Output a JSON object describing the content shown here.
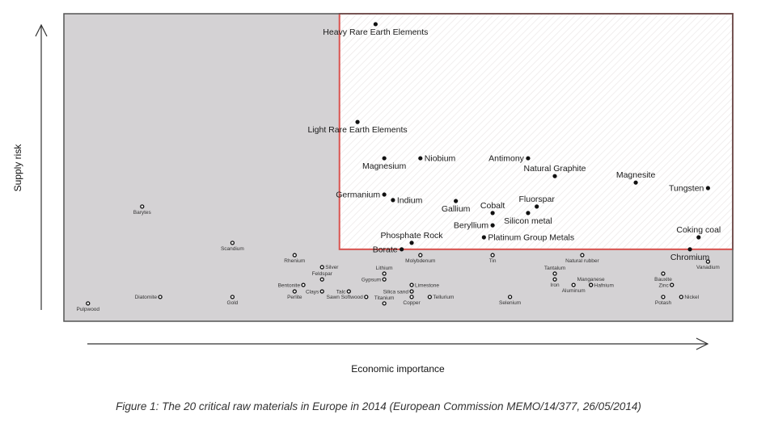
{
  "chart_data": {
    "type": "scatter",
    "title": "",
    "xlabel": "Economic importance",
    "ylabel": "Supply risk",
    "xlim": [
      0,
      100
    ],
    "ylim": [
      0,
      100
    ],
    "grid": false,
    "legend": "none",
    "colors": {
      "plot_background": "#d4d2d4",
      "critical_region": "#ffffff",
      "critical_border": "#d9534f",
      "frame": "#555555",
      "marker": "#111111"
    },
    "critical_region": {
      "x_min": 41.2,
      "y_min": 23.4
    },
    "series": [
      {
        "name": "Critical raw materials",
        "marker": "filled",
        "points": [
          {
            "label": "Heavy Rare Earth Elements",
            "x": 46.6,
            "y": 96.6,
            "pos": "below"
          },
          {
            "label": "Light Rare Earth Elements",
            "x": 43.9,
            "y": 64.8,
            "pos": "below"
          },
          {
            "label": "Magnesium",
            "x": 47.9,
            "y": 53.0,
            "pos": "below"
          },
          {
            "label": "Niobium",
            "x": 53.3,
            "y": 53.0,
            "pos": "right"
          },
          {
            "label": "Antimony",
            "x": 69.4,
            "y": 53.0,
            "pos": "left"
          },
          {
            "label": "Natural Graphite",
            "x": 73.4,
            "y": 47.2,
            "pos": "above"
          },
          {
            "label": "Magnesite",
            "x": 85.5,
            "y": 45.1,
            "pos": "above"
          },
          {
            "label": "Tungsten",
            "x": 96.3,
            "y": 43.3,
            "pos": "left"
          },
          {
            "label": "Germanium",
            "x": 47.9,
            "y": 41.2,
            "pos": "left"
          },
          {
            "label": "Indium",
            "x": 49.2,
            "y": 39.4,
            "pos": "right"
          },
          {
            "label": "Gallium",
            "x": 58.6,
            "y": 39.1,
            "pos": "below"
          },
          {
            "label": "Fluorspar",
            "x": 70.7,
            "y": 37.3,
            "pos": "above"
          },
          {
            "label": "Cobalt",
            "x": 64.1,
            "y": 35.2,
            "pos": "above"
          },
          {
            "label": "Silicon metal",
            "x": 69.4,
            "y": 35.2,
            "pos": "below"
          },
          {
            "label": "Beryllium",
            "x": 64.1,
            "y": 31.2,
            "pos": "left"
          },
          {
            "label": "Coking coal",
            "x": 94.9,
            "y": 27.3,
            "pos": "above"
          },
          {
            "label": "Platinum Group Metals",
            "x": 62.8,
            "y": 27.3,
            "pos": "right"
          },
          {
            "label": "Phosphate Rock",
            "x": 52.0,
            "y": 25.5,
            "pos": "above"
          },
          {
            "label": "Borate",
            "x": 50.5,
            "y": 23.4,
            "pos": "left"
          },
          {
            "label": "Chromium",
            "x": 93.6,
            "y": 23.4,
            "pos": "below"
          }
        ]
      },
      {
        "name": "Non-critical raw materials",
        "marker": "open",
        "points": [
          {
            "label": "Barytes",
            "x": 11.7,
            "y": 37.3,
            "pos": "below"
          },
          {
            "label": "Scandium",
            "x": 25.2,
            "y": 25.5,
            "pos": "below"
          },
          {
            "label": "Rhenium",
            "x": 34.5,
            "y": 21.5,
            "pos": "below"
          },
          {
            "label": "Silver",
            "x": 38.6,
            "y": 17.6,
            "pos": "right"
          },
          {
            "label": "Lithium",
            "x": 47.9,
            "y": 15.5,
            "pos": "above"
          },
          {
            "label": "Molybdenum",
            "x": 53.3,
            "y": 21.5,
            "pos": "below"
          },
          {
            "label": "Tin",
            "x": 64.1,
            "y": 21.5,
            "pos": "below"
          },
          {
            "label": "Natural rubber",
            "x": 77.5,
            "y": 21.5,
            "pos": "below"
          },
          {
            "label": "Vanadium",
            "x": 96.3,
            "y": 19.4,
            "pos": "below"
          },
          {
            "label": "Tantalum",
            "x": 73.4,
            "y": 15.5,
            "pos": "above"
          },
          {
            "label": "Bauxite",
            "x": 89.6,
            "y": 15.5,
            "pos": "below"
          },
          {
            "label": "Gypsum",
            "x": 47.9,
            "y": 13.6,
            "pos": "left"
          },
          {
            "label": "Feldspar",
            "x": 38.6,
            "y": 13.6,
            "pos": "above"
          },
          {
            "label": "Iron",
            "x": 73.4,
            "y": 13.6,
            "pos": "below"
          },
          {
            "label": "Bentonite",
            "x": 35.8,
            "y": 11.8,
            "pos": "left"
          },
          {
            "label": "Clays",
            "x": 38.6,
            "y": 9.7,
            "pos": "left"
          },
          {
            "label": "Limestone",
            "x": 52.0,
            "y": 11.8,
            "pos": "right"
          },
          {
            "label": "Aluminum",
            "x": 76.2,
            "y": 11.8,
            "pos": "below"
          },
          {
            "label": "Manganese",
            "x": 78.8,
            "y": 11.8,
            "pos": "above"
          },
          {
            "label": "Hafnium",
            "x": 78.8,
            "y": 11.8,
            "pos": "right"
          },
          {
            "label": "Zinc",
            "x": 90.9,
            "y": 11.8,
            "pos": "left"
          },
          {
            "label": "Perlite",
            "x": 34.5,
            "y": 9.7,
            "pos": "below"
          },
          {
            "label": "Talc",
            "x": 42.6,
            "y": 9.7,
            "pos": "left"
          },
          {
            "label": "Silica sand",
            "x": 52.0,
            "y": 9.7,
            "pos": "left"
          },
          {
            "label": "Diatomite",
            "x": 14.4,
            "y": 7.9,
            "pos": "left"
          },
          {
            "label": "Gold",
            "x": 25.2,
            "y": 7.9,
            "pos": "below"
          },
          {
            "label": "Sawn Softwood",
            "x": 45.2,
            "y": 7.9,
            "pos": "left"
          },
          {
            "label": "Titanium",
            "x": 47.9,
            "y": 5.8,
            "pos": "above"
          },
          {
            "label": "Copper",
            "x": 52.0,
            "y": 7.9,
            "pos": "below"
          },
          {
            "label": "Tellurium",
            "x": 54.7,
            "y": 7.9,
            "pos": "right"
          },
          {
            "label": "Selenium",
            "x": 66.7,
            "y": 7.9,
            "pos": "below"
          },
          {
            "label": "Potash",
            "x": 89.6,
            "y": 7.9,
            "pos": "below"
          },
          {
            "label": "Nickel",
            "x": 92.3,
            "y": 7.9,
            "pos": "right"
          },
          {
            "label": "Pulpwood",
            "x": 3.6,
            "y": 5.8,
            "pos": "below"
          }
        ]
      }
    ],
    "caption": "Figure 1: The 20 critical raw materials in Europe in 2014 (European Commission MEMO/14/377, 26/05/2014)"
  }
}
